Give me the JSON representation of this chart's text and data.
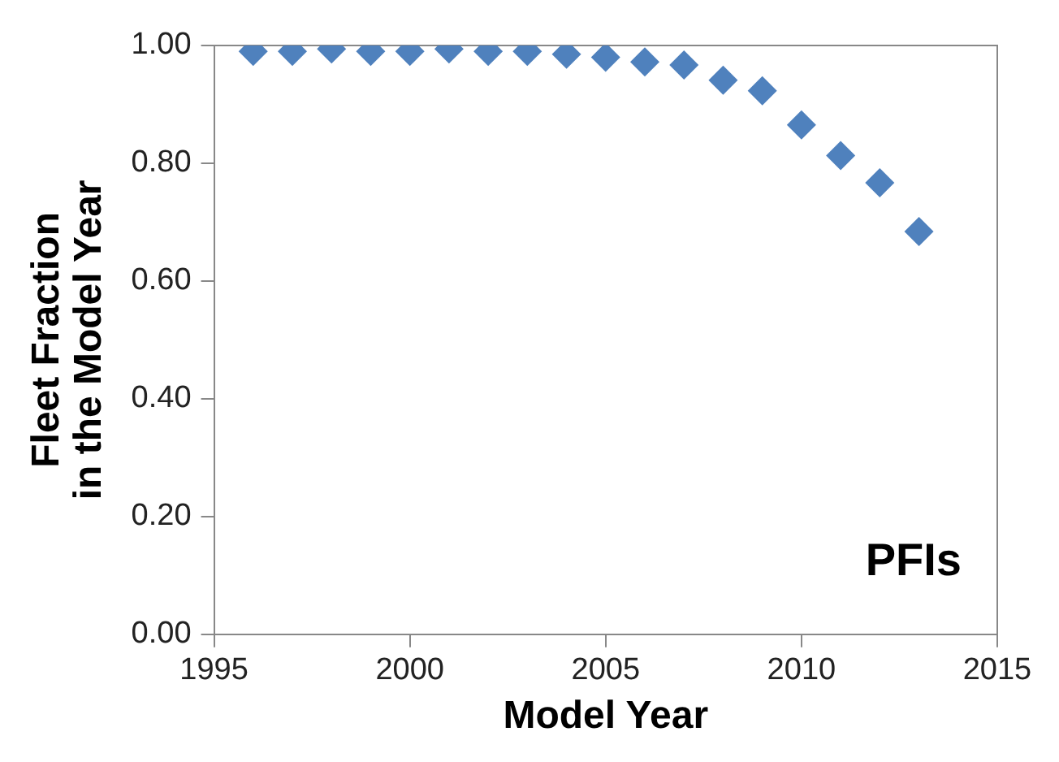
{
  "chart_data": {
    "type": "scatter",
    "xlabel": "Model Year",
    "ylabel": "Fleet Fraction\nin the Model Year",
    "annotations": [
      "PFIs"
    ],
    "x": [
      1996,
      1997,
      1998,
      1999,
      2000,
      2001,
      2002,
      2003,
      2004,
      2005,
      2006,
      2007,
      2008,
      2009,
      2010,
      2011,
      2012,
      2013
    ],
    "series": [
      {
        "color": "#4f81bd",
        "values": [
          0.99,
          0.99,
          0.994,
          0.99,
          0.99,
          0.994,
          0.99,
          0.99,
          0.985,
          0.98,
          0.972,
          0.967,
          0.941,
          0.923,
          0.865,
          0.813,
          0.767,
          0.684
        ]
      }
    ],
    "xlim": [
      1995,
      2015
    ],
    "xticks": [
      1995,
      2000,
      2005,
      2010,
      2015
    ],
    "ylim": [
      0,
      1
    ],
    "yticks": [
      {
        "value": 0,
        "label": "0.00"
      },
      {
        "value": 0.2,
        "label": "0.20"
      },
      {
        "value": 0.4,
        "label": "0.40"
      },
      {
        "value": 0.6,
        "label": "0.60"
      },
      {
        "value": 0.8,
        "label": "0.80"
      },
      {
        "value": 1,
        "label": "1.00"
      }
    ],
    "grid": false,
    "legend": false,
    "marker": "diamond"
  }
}
